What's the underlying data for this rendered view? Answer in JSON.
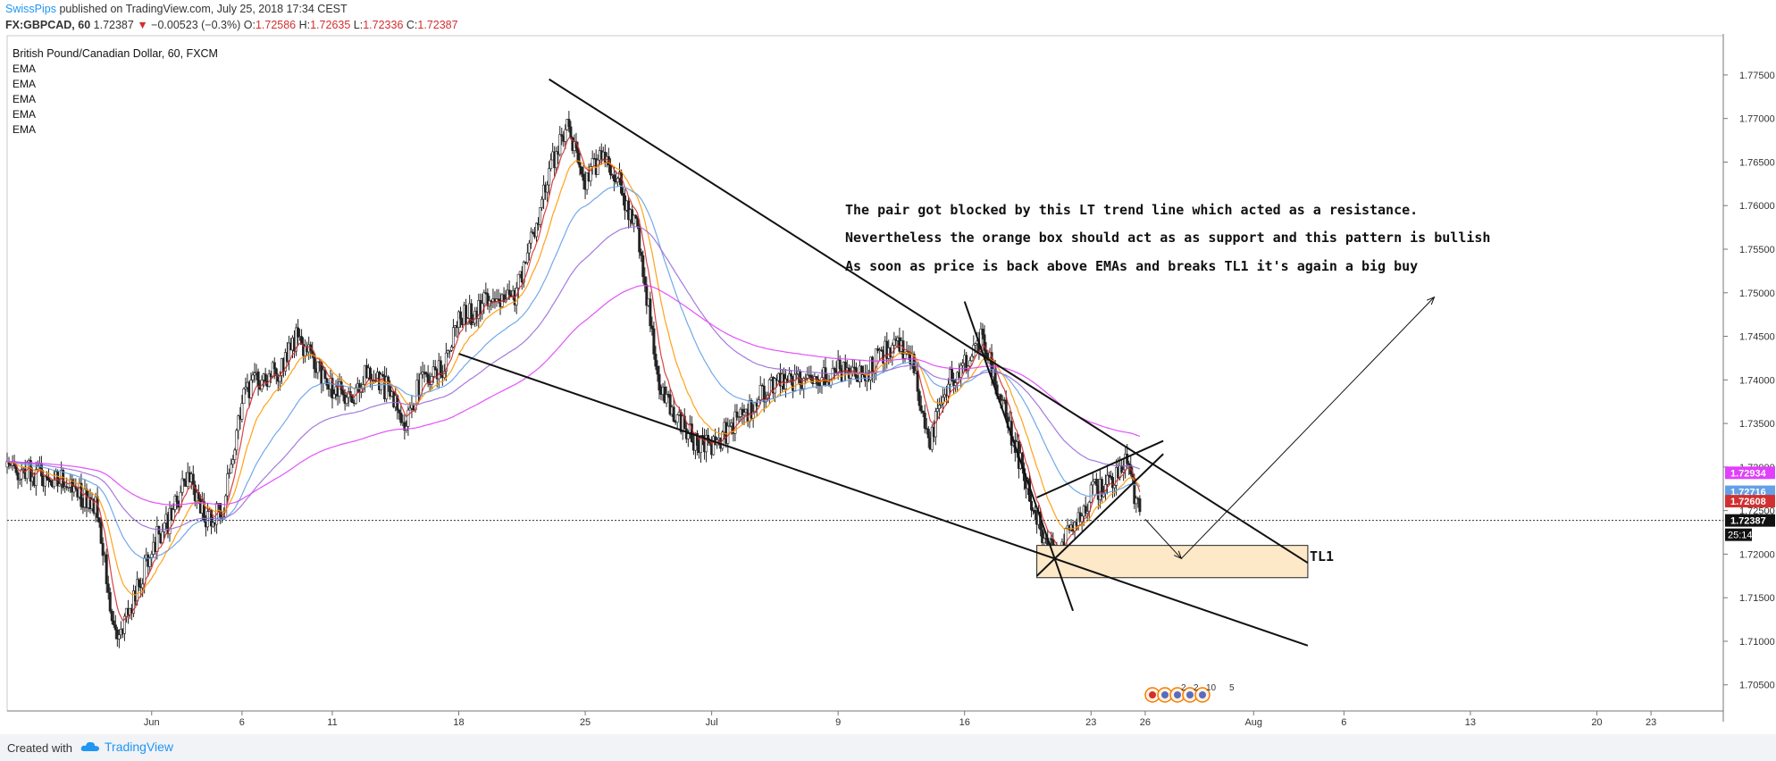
{
  "header": {
    "author": "SwissPips",
    "published": "published on TradingView.com, July 25, 2018 17:34 CEST",
    "symbol": "FX:GBPCAD, 60",
    "last": "1.72387",
    "change_arrow": "▼",
    "change": "−0.00523 (−0.3%)",
    "o_label": "O:",
    "o": "1.72586",
    "h_label": "H:",
    "h": "1.72635",
    "l_label": "L:",
    "l": "1.72336",
    "c_label": "C:",
    "c": "1.72387"
  },
  "legend": {
    "title": "British Pound/Canadian Dollar, 60, FXCM",
    "studies": [
      "EMA",
      "EMA",
      "EMA",
      "EMA",
      "EMA"
    ]
  },
  "annotations": {
    "line1": "The pair got blocked by this LT trend line which acted as a resistance.",
    "line2": "Nevertheless the orange box should act as as support and this pattern is bullish",
    "line3": "As soon as price is back above EMAs and breaks TL1 it's again a big buy",
    "tl1": "TL1"
  },
  "footer": {
    "created": "Created with",
    "brand": "TradingView"
  },
  "colors": {
    "ema_fast": "#d32f2f",
    "ema_mid": "#ff9800",
    "ema_slow": "#64a0e6",
    "ema_slower": "#9b6cd9",
    "ema_slowest": "#e040fb",
    "box_fill": "#fde9c8",
    "box_stroke": "#222222",
    "candle": "#222222"
  },
  "chart_data": {
    "type": "candlestick",
    "instrument": "GBPCAD",
    "timeframe": "60",
    "y_axis": {
      "ylim": [
        1.702,
        1.7795
      ],
      "ticks": [
        "1.77500",
        "1.77000",
        "1.76500",
        "1.76000",
        "1.75500",
        "1.75000",
        "1.74500",
        "1.74000",
        "1.73500",
        "1.73000",
        "1.72500",
        "1.72000",
        "1.71500",
        "1.71000",
        "1.70500"
      ]
    },
    "x_axis": {
      "xlim": [
        "2018-05-24",
        "2018-08-27"
      ],
      "ticks": [
        {
          "date": "2018-06-01",
          "label": "Jun"
        },
        {
          "date": "2018-06-06",
          "label": "6"
        },
        {
          "date": "2018-06-11",
          "label": "11"
        },
        {
          "date": "2018-06-18",
          "label": "18"
        },
        {
          "date": "2018-06-25",
          "label": "25"
        },
        {
          "date": "2018-07-02",
          "label": "Jul"
        },
        {
          "date": "2018-07-09",
          "label": "9"
        },
        {
          "date": "2018-07-16",
          "label": "16"
        },
        {
          "date": "2018-07-23",
          "label": "23"
        },
        {
          "date": "2018-07-26",
          "label": "26"
        },
        {
          "date": "2018-08-01",
          "label": "Aug"
        },
        {
          "date": "2018-08-06",
          "label": "6"
        },
        {
          "date": "2018-08-13",
          "label": "13"
        },
        {
          "date": "2018-08-20",
          "label": "20"
        },
        {
          "date": "2018-08-23",
          "label": "23"
        }
      ]
    },
    "price_path": [
      [
        "2018-05-24",
        1.73
      ],
      [
        "2018-05-27",
        1.7285
      ],
      [
        "2018-05-29",
        1.7255
      ],
      [
        "2018-05-30",
        1.71
      ],
      [
        "2018-05-31",
        1.7145
      ],
      [
        "2018-06-01",
        1.721
      ],
      [
        "2018-06-02",
        1.724
      ],
      [
        "2018-06-03",
        1.729
      ],
      [
        "2018-06-04",
        1.724
      ],
      [
        "2018-06-05",
        1.7255
      ],
      [
        "2018-06-06",
        1.738
      ],
      [
        "2018-06-07",
        1.74
      ],
      [
        "2018-06-08",
        1.741
      ],
      [
        "2018-06-09",
        1.745
      ],
      [
        "2018-06-11",
        1.739
      ],
      [
        "2018-06-12",
        1.7375
      ],
      [
        "2018-06-13",
        1.741
      ],
      [
        "2018-06-14",
        1.739
      ],
      [
        "2018-06-15",
        1.7355
      ],
      [
        "2018-06-16",
        1.74
      ],
      [
        "2018-06-17",
        1.741
      ],
      [
        "2018-06-18",
        1.747
      ],
      [
        "2018-06-19",
        1.748
      ],
      [
        "2018-06-20",
        1.75
      ],
      [
        "2018-06-21",
        1.749
      ],
      [
        "2018-06-22",
        1.756
      ],
      [
        "2018-06-23",
        1.764
      ],
      [
        "2018-06-24",
        1.769
      ],
      [
        "2018-06-25",
        1.7625
      ],
      [
        "2018-06-26",
        1.7665
      ],
      [
        "2018-06-27",
        1.762
      ],
      [
        "2018-06-28",
        1.756
      ],
      [
        "2018-06-29",
        1.74
      ],
      [
        "2018-06-30",
        1.736
      ],
      [
        "2018-07-01",
        1.733
      ],
      [
        "2018-07-02",
        1.7325
      ],
      [
        "2018-07-03",
        1.7345
      ],
      [
        "2018-07-04",
        1.736
      ],
      [
        "2018-07-05",
        1.739
      ],
      [
        "2018-07-06",
        1.7395
      ],
      [
        "2018-07-08",
        1.7405
      ],
      [
        "2018-07-09",
        1.741
      ],
      [
        "2018-07-10",
        1.74
      ],
      [
        "2018-07-11",
        1.742
      ],
      [
        "2018-07-12",
        1.744
      ],
      [
        "2018-07-13",
        1.743
      ],
      [
        "2018-07-14",
        1.732
      ],
      [
        "2018-07-15",
        1.7395
      ],
      [
        "2018-07-16",
        1.742
      ],
      [
        "2018-07-17",
        1.745
      ],
      [
        "2018-07-18",
        1.738
      ],
      [
        "2018-07-19",
        1.731
      ],
      [
        "2018-07-20",
        1.724
      ],
      [
        "2018-07-21",
        1.7195
      ],
      [
        "2018-07-22",
        1.723
      ],
      [
        "2018-07-23",
        1.727
      ],
      [
        "2018-07-24",
        1.7285
      ],
      [
        "2018-07-25",
        1.731
      ],
      [
        "2018-07-25 17:00",
        1.72387
      ]
    ],
    "ema_levels": [
      {
        "name": "",
        "color": "#e040fb",
        "last": 1.72934
      },
      {
        "name": "",
        "color": "#64a0e6",
        "last": 1.72716
      },
      {
        "name": "",
        "color": "#d32f2f",
        "last": 1.72608
      }
    ],
    "last_price": 1.72387,
    "countdown": "25:14",
    "trend_lines": [
      {
        "name": "LT resistance",
        "from": [
          "2018-06-23",
          1.7745
        ],
        "to": [
          "2018-08-04",
          1.719
        ]
      },
      {
        "name": "lower support",
        "from": [
          "2018-06-18",
          1.743
        ],
        "to": [
          "2018-08-04",
          1.7095
        ]
      },
      {
        "name": "steep line",
        "from": [
          "2018-07-16",
          1.749
        ],
        "to": [
          "2018-07-22",
          1.7135
        ]
      },
      {
        "name": "wedge upper",
        "from": [
          "2018-07-20",
          1.7265
        ],
        "to": [
          "2018-07-27",
          1.733
        ]
      },
      {
        "name": "wedge lower",
        "from": [
          "2018-07-20",
          1.7175
        ],
        "to": [
          "2018-07-27",
          1.7315
        ]
      },
      {
        "name": "path leg 1",
        "from": [
          "2018-07-26",
          1.724
        ],
        "to": [
          "2018-07-28",
          1.7195
        ]
      },
      {
        "name": "path leg 2",
        "from": [
          "2018-07-28",
          1.7195
        ],
        "to": [
          "2018-08-11",
          1.7495
        ]
      }
    ],
    "support_box": {
      "from": "2018-07-20",
      "to": "2018-08-04",
      "top": 1.721,
      "bottom": 1.7173
    },
    "events": {
      "labels": [
        "2",
        "2",
        "10",
        "5"
      ]
    }
  }
}
